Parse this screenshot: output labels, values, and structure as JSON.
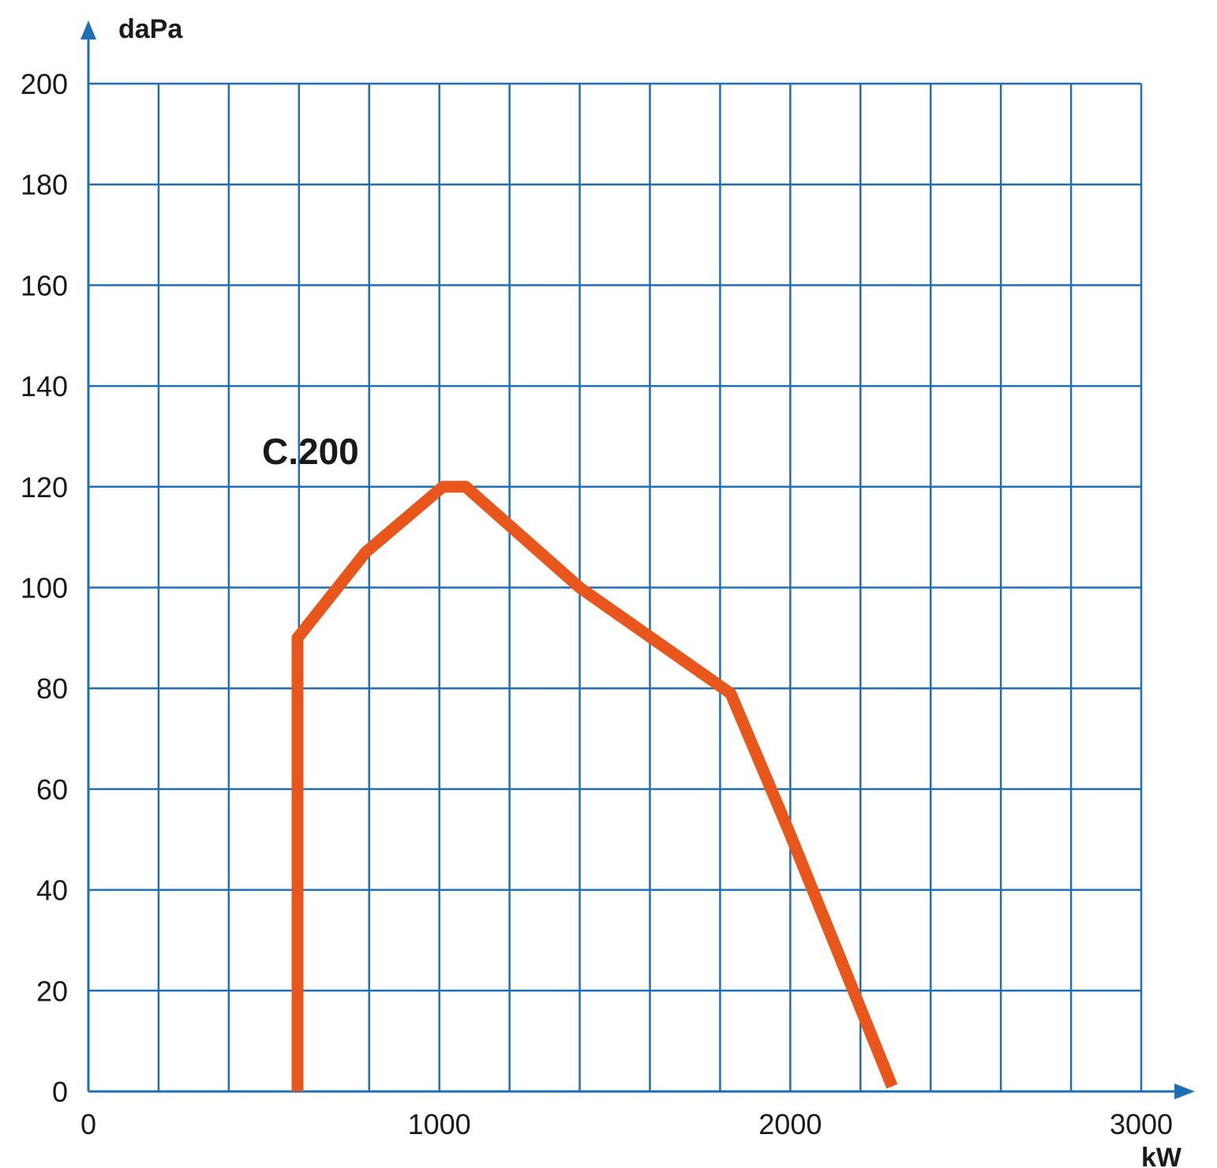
{
  "chart_data": {
    "type": "line",
    "title": "",
    "xlabel": "kW",
    "ylabel": "daPa",
    "xlim": [
      0,
      3000
    ],
    "ylim": [
      0,
      200
    ],
    "x_ticks": [
      0,
      1000,
      2000,
      3000
    ],
    "y_ticks": [
      0,
      20,
      40,
      60,
      80,
      100,
      120,
      140,
      160,
      180,
      200
    ],
    "x_grid_step": 200,
    "y_grid_step": 20,
    "grid": true,
    "colors": {
      "grid": "#1f6fb5",
      "axis": "#1f6fb5",
      "series": "#e8561c"
    },
    "series": [
      {
        "name": "C.200",
        "x": [
          596,
          596,
          790,
          1010,
          1075,
          1400,
          1830,
          2000,
          2290
        ],
        "y": [
          0,
          90,
          107,
          120,
          120,
          100,
          79,
          51,
          1
        ]
      }
    ]
  }
}
